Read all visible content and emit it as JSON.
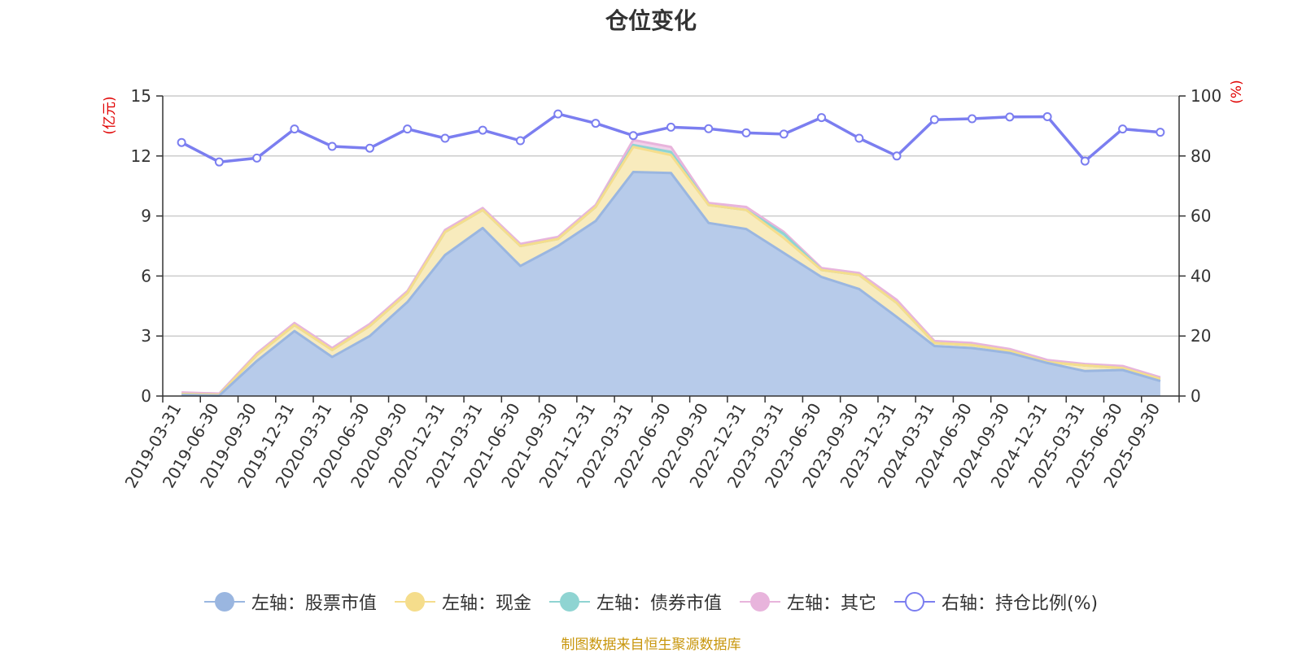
{
  "title": "仓位变化",
  "source_note": "制图数据来自恒生聚源数据库",
  "colors": {
    "stock": "#9ab6e0",
    "stock_fill": "#b7cbea",
    "cash": "#f5dd8c",
    "cash_fill": "#f8ebbd",
    "bond": "#8fd4d2",
    "bond_fill": "#b9e6e4",
    "other": "#e8b4dc",
    "ratio": "#7b7ef0",
    "axis_unit": "#e00000",
    "grid": "#cccccc",
    "axis": "#333333",
    "text": "#333333"
  },
  "legend": [
    {
      "key": "stock",
      "label": "左轴：股票市值",
      "style": "filled"
    },
    {
      "key": "cash",
      "label": "左轴：现金",
      "style": "filled"
    },
    {
      "key": "bond",
      "label": "左轴：债券市值",
      "style": "filled"
    },
    {
      "key": "other",
      "label": "左轴：其它",
      "style": "filled"
    },
    {
      "key": "ratio",
      "label": "右轴：持仓比例(%)",
      "style": "hollow"
    }
  ],
  "chart_data": {
    "type": "area",
    "title": "仓位变化",
    "ylabel_left": "(亿元)",
    "ylabel_right": "(%)",
    "ylim_left": [
      0,
      15
    ],
    "yticks_left": [
      0,
      3,
      6,
      9,
      12,
      15
    ],
    "ylim_right": [
      0,
      100
    ],
    "yticks_right": [
      0,
      20,
      40,
      60,
      80,
      100
    ],
    "categories": [
      "2019-03-31",
      "2019-06-30",
      "2019-09-30",
      "2019-12-31",
      "2020-03-31",
      "2020-06-30",
      "2020-09-30",
      "2020-12-31",
      "2021-03-31",
      "2021-06-30",
      "2021-09-30",
      "2021-12-31",
      "2022-03-31",
      "2022-06-30",
      "2022-09-30",
      "2022-12-31",
      "2023-03-31",
      "2023-06-30",
      "2023-09-30",
      "2023-12-31",
      "2024-03-31",
      "2024-06-30",
      "2024-09-30",
      "2024-12-31",
      "2025-03-31",
      "2025-06-30",
      "2025-09-30"
    ],
    "stacked_series": [
      {
        "key": "stock",
        "name": "左轴：股票市值",
        "axis": "left",
        "values": [
          0.05,
          0.02,
          1.75,
          3.25,
          1.95,
          3.0,
          4.7,
          7.05,
          8.4,
          6.5,
          7.5,
          8.75,
          11.2,
          11.15,
          8.65,
          8.35,
          7.15,
          5.95,
          5.35,
          3.95,
          2.5,
          2.4,
          2.15,
          1.65,
          1.25,
          1.3,
          0.75
        ]
      },
      {
        "key": "cash",
        "name": "左轴：现金",
        "axis": "left",
        "values": [
          0.05,
          0.04,
          0.3,
          0.3,
          0.35,
          0.5,
          0.45,
          1.15,
          0.9,
          1.0,
          0.35,
          0.7,
          1.25,
          0.9,
          0.9,
          0.95,
          0.75,
          0.35,
          0.7,
          0.7,
          0.15,
          0.15,
          0.1,
          0.05,
          0.28,
          0.1,
          0.1
        ]
      },
      {
        "key": "bond",
        "name": "左轴：债券市值",
        "axis": "left",
        "values": [
          0,
          0,
          0,
          0,
          0,
          0,
          0,
          0,
          0,
          0,
          0,
          0,
          0.1,
          0.15,
          0,
          0,
          0.2,
          0,
          0,
          0,
          0,
          0,
          0,
          0,
          0,
          0,
          0
        ]
      },
      {
        "key": "other",
        "name": "左轴：其它",
        "axis": "left",
        "values": [
          0.08,
          0.06,
          0.08,
          0.1,
          0.1,
          0.1,
          0.1,
          0.1,
          0.1,
          0.1,
          0.1,
          0.1,
          0.25,
          0.25,
          0.1,
          0.15,
          0.1,
          0.1,
          0.1,
          0.15,
          0.1,
          0.1,
          0.1,
          0.1,
          0.07,
          0.1,
          0.08
        ]
      }
    ],
    "line_series": {
      "key": "ratio",
      "name": "右轴：持仓比例(%)",
      "axis": "right",
      "values": [
        84.5,
        78,
        79.3,
        89,
        83.2,
        82.6,
        89,
        85.9,
        88.6,
        85.1,
        94,
        90.9,
        86.8,
        89.6,
        89.1,
        87.7,
        87.3,
        92.8,
        85.9,
        80,
        92.1,
        92.4,
        93,
        93.1,
        78.3,
        89,
        87.9
      ]
    }
  }
}
